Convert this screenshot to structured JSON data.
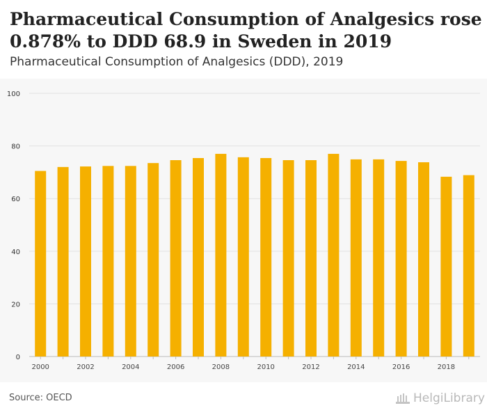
{
  "header": {
    "title": "Pharmaceutical Consumption of Analgesics rose 0.878% to DDD 68.9 in Sweden in 2019",
    "subtitle": "Pharmaceutical Consumption of Analgesics (DDD), 2019"
  },
  "footer": {
    "source": "Source: OECD",
    "brand": "HelgiLibrary"
  },
  "colors": {
    "bar": "#f5b000",
    "grid": "#e2e2e2",
    "tick_label": "#444444",
    "axis_label": "#333333"
  },
  "chart_data": {
    "type": "bar",
    "x": [
      "2000",
      "2001",
      "2002",
      "2003",
      "2004",
      "2005",
      "2006",
      "2007",
      "2008",
      "2009",
      "2010",
      "2011",
      "2012",
      "2013",
      "2014",
      "2015",
      "2016",
      "2017",
      "2018",
      "2019"
    ],
    "values": [
      70.5,
      72.0,
      72.2,
      72.4,
      72.4,
      73.5,
      74.6,
      75.4,
      77.0,
      75.7,
      75.4,
      74.6,
      74.6,
      77.0,
      74.9,
      74.9,
      74.3,
      73.8,
      68.3,
      68.9
    ],
    "x_tick_labels": [
      "2000",
      "2002",
      "2004",
      "2006",
      "2008",
      "2010",
      "2012",
      "2014",
      "2016",
      "2018"
    ],
    "y_ticks": [
      0,
      20,
      40,
      60,
      80,
      100
    ],
    "ylim": [
      0,
      100
    ],
    "grid": true,
    "legend": "none"
  }
}
